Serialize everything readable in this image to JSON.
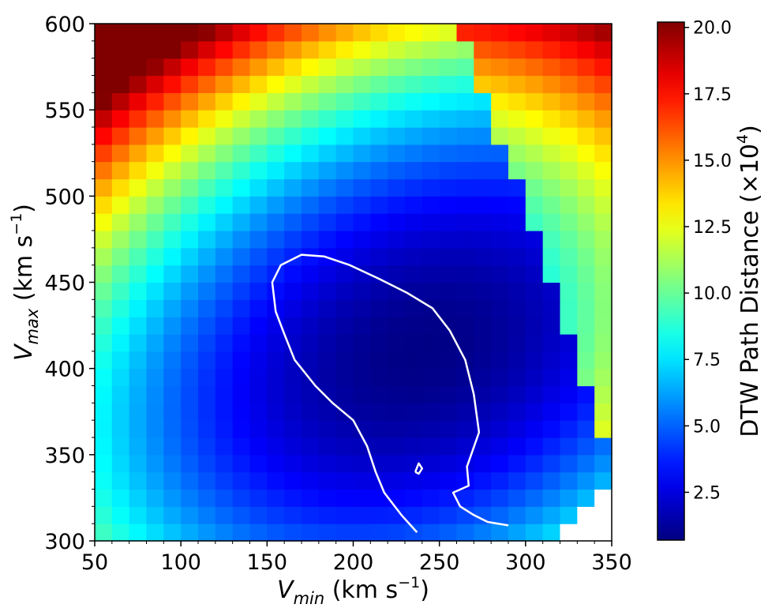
{
  "chart_data": {
    "type": "heatmap",
    "xlabel_main": "V",
    "xlabel_sub": "min",
    "xlabel_unit": " (km s",
    "xlabel_exp": "−1",
    "xlabel_close": ")",
    "ylabel_main": "V",
    "ylabel_sub": "max",
    "ylabel_unit": " (km s",
    "ylabel_exp": "−1",
    "ylabel_close": ")",
    "xlim": [
      50,
      350
    ],
    "ylim": [
      300,
      600
    ],
    "x_ticks": [
      "50",
      "100",
      "150",
      "200",
      "250",
      "300",
      "350"
    ],
    "y_ticks": [
      "300",
      "350",
      "400",
      "450",
      "500",
      "550",
      "600"
    ],
    "grid_cells": 30,
    "colorbar": {
      "label_main": "DTW Path Distance (×10",
      "label_exp": "4",
      "label_close": ")",
      "range": [
        0.7,
        20.2
      ],
      "ticks": [
        2.5,
        5.0,
        7.5,
        10.0,
        12.5,
        15.0,
        17.5,
        20.0
      ],
      "tick_labels": [
        "2.5",
        "5.0",
        "7.5",
        "10.0",
        "12.5",
        "15.0",
        "17.5",
        "20.0"
      ],
      "colormap": "jet"
    },
    "minimum_location": {
      "vmin": 240,
      "vmax": 410,
      "value": 0.8
    },
    "contour": {
      "color": "#ffffff",
      "main": [
        [
          237,
          305
        ],
        [
          228,
          315
        ],
        [
          218,
          328
        ],
        [
          213,
          340
        ],
        [
          208,
          355
        ],
        [
          200,
          370
        ],
        [
          188,
          380
        ],
        [
          178,
          390
        ],
        [
          166,
          405
        ],
        [
          160,
          420
        ],
        [
          155,
          433
        ],
        [
          153,
          450
        ],
        [
          158,
          460
        ],
        [
          170,
          466
        ],
        [
          183,
          465
        ],
        [
          198,
          460
        ],
        [
          215,
          452
        ],
        [
          231,
          444
        ],
        [
          246,
          435
        ],
        [
          256,
          422
        ],
        [
          265,
          405
        ],
        [
          270,
          385
        ],
        [
          273,
          363
        ],
        [
          266,
          343
        ],
        [
          267,
          332
        ],
        [
          258,
          328
        ],
        [
          262,
          320
        ],
        [
          270,
          315
        ],
        [
          278,
          311
        ],
        [
          290,
          309
        ]
      ],
      "small": [
        [
          236,
          340
        ],
        [
          238,
          345
        ],
        [
          240,
          342
        ],
        [
          238,
          339
        ],
        [
          236,
          340
        ]
      ]
    },
    "masked_region": "bottom-right corner"
  }
}
